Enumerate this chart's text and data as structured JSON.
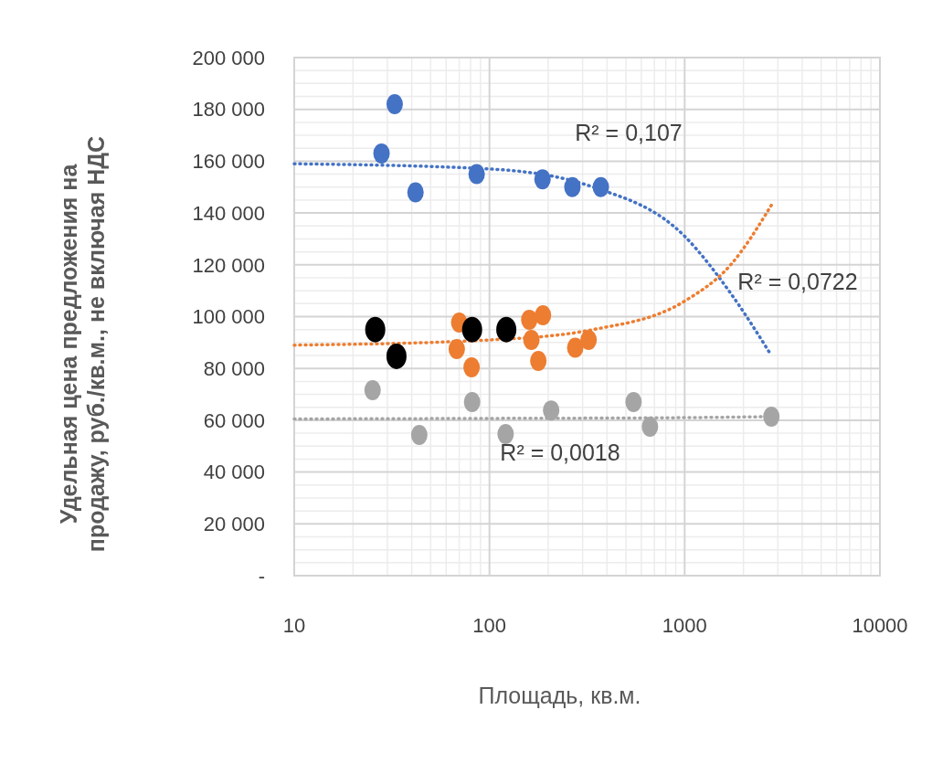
{
  "chart_data": {
    "type": "scatter",
    "xlabel": "Площадь, кв.м.",
    "ylabel": "Удельная цена предложения на продажу, руб./кв.м., не включая НДС",
    "log": "x",
    "xlim": [
      10,
      10000
    ],
    "xticks": [
      10,
      100,
      1000,
      10000
    ],
    "ylim": [
      0,
      200000
    ],
    "yticks": [
      {
        "value": 0,
        "label": "-"
      },
      {
        "value": 20000,
        "label": "20 000"
      },
      {
        "value": 40000,
        "label": "40 000"
      },
      {
        "value": 60000,
        "label": "60 000"
      },
      {
        "value": 80000,
        "label": "80 000"
      },
      {
        "value": 100000,
        "label": "100 000"
      },
      {
        "value": 120000,
        "label": "120 000"
      },
      {
        "value": 140000,
        "label": "140 000"
      },
      {
        "value": 160000,
        "label": "160 000"
      },
      {
        "value": 180000,
        "label": "180 000"
      },
      {
        "value": 200000,
        "label": "200 000"
      }
    ],
    "grid": true,
    "marker": "circle",
    "series": [
      {
        "color": "#4472c4",
        "x": [
          32.7,
          28,
          41.8,
          86,
          187,
          266,
          372
        ],
        "values": [
          182000,
          163000,
          148000,
          155000,
          153000,
          150000,
          150000
        ]
      },
      {
        "color": "#ed7d31",
        "x": [
          70,
          68,
          81,
          160,
          188,
          164,
          178,
          275,
          322
        ],
        "values": [
          97700,
          87500,
          80400,
          98800,
          100500,
          91000,
          82900,
          88000,
          91000
        ]
      },
      {
        "color": "#a5a5a5",
        "x": [
          25.2,
          43.7,
          81.5,
          121,
          207,
          547,
          664,
          2780
        ],
        "values": [
          71600,
          54300,
          67000,
          54700,
          63800,
          67000,
          57500,
          61400
        ]
      },
      {
        "color": "#000000",
        "x": [
          26,
          33.4,
          81.5,
          122
        ],
        "values": [
          95000,
          84700,
          95000,
          95000
        ]
      },
      {
        "type": "line",
        "color": "#4472c4",
        "line_style": "dotted",
        "marker": "none",
        "x": [
          10,
          100,
          340,
          1000,
          1720,
          2780
        ],
        "values": [
          159000,
          157000,
          150000,
          131000,
          109000,
          85000
        ]
      },
      {
        "type": "line",
        "color": "#ed7d31",
        "line_style": "dotted",
        "marker": "none",
        "x": [
          10,
          100,
          340,
          1000,
          1720,
          2780
        ],
        "values": [
          89000,
          91000,
          95000,
          106000,
          120000,
          143000
        ]
      },
      {
        "type": "line",
        "color": "#a5a5a5",
        "line_style": "dotted",
        "marker": "none",
        "x": [
          10,
          100,
          1000,
          2780
        ],
        "values": [
          60500,
          60700,
          61000,
          61400
        ]
      }
    ],
    "annotations": [
      "R² = 0,107",
      "R² = 0,0722",
      "R² = 0,0018"
    ]
  }
}
